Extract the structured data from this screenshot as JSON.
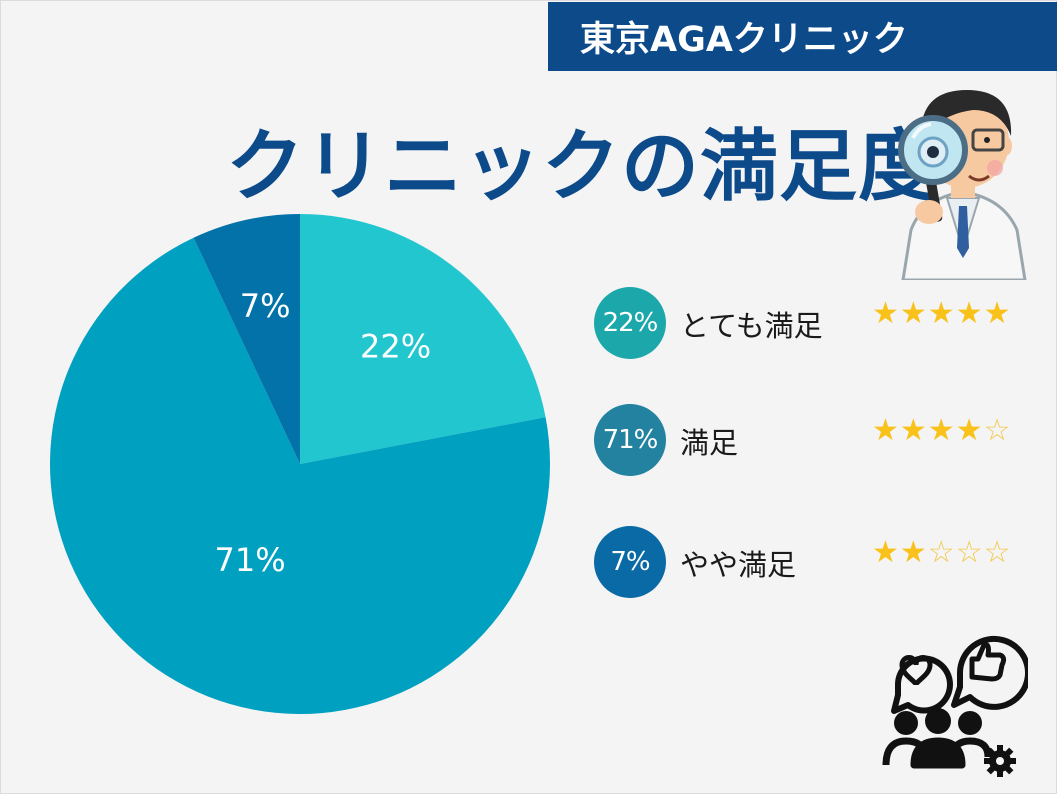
{
  "header": {
    "brand": "東京AGAクリニック",
    "title": "クリニックの満足度"
  },
  "colors": {
    "banner": "#0c4a8a",
    "title": "#0c4a8a",
    "background": "#f4f4f4"
  },
  "chart_data": {
    "type": "pie",
    "title": "",
    "slices": [
      {
        "label": "とても満足",
        "value": 22,
        "display": "22%",
        "color": "#21c6cf"
      },
      {
        "label": "満足",
        "value": 71,
        "display": "71%",
        "color": "#00a0c1"
      },
      {
        "label": "やや満足",
        "value": 7,
        "display": "7%",
        "color": "#0272a8"
      }
    ]
  },
  "legend": [
    {
      "badge": "22%",
      "label": "とても満足",
      "stars": "★★★★★",
      "empty_stars": "",
      "rating": 5,
      "badge_color": "#1ca8aa"
    },
    {
      "badge": "71%",
      "label": "満足",
      "stars": "★★★★",
      "empty_stars": "☆",
      "rating": 4,
      "badge_color": "#23829f"
    },
    {
      "badge": "7%",
      "label": "やや満足",
      "stars": "★★",
      "empty_stars": "☆☆☆",
      "rating": 2,
      "badge_color": "#0a6aa6"
    }
  ],
  "icons": {
    "doctor": "doctor-magnifier-icon",
    "people": "people-feedback-icon"
  }
}
